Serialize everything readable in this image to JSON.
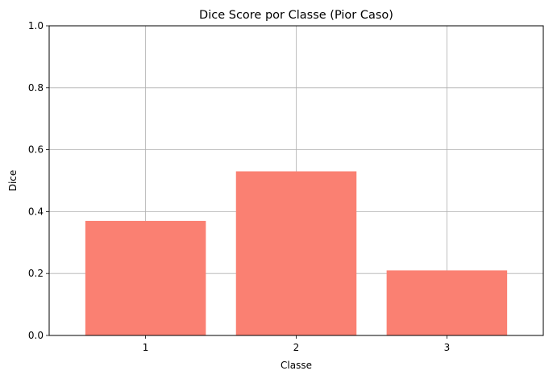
{
  "chart_data": {
    "type": "bar",
    "title": "Dice Score por Classe (Pior Caso)",
    "xlabel": "Classe",
    "ylabel": "Dice",
    "categories": [
      "1",
      "2",
      "3"
    ],
    "values": [
      0.37,
      0.53,
      0.21
    ],
    "ylim": [
      0,
      1.0
    ],
    "yticks": [
      "0.0",
      "0.2",
      "0.4",
      "0.6",
      "0.8",
      "1.0"
    ],
    "grid": true,
    "bar_color": "#fa8072",
    "grid_color": "#b0b0b0"
  }
}
